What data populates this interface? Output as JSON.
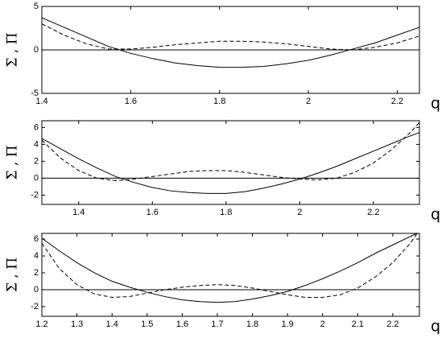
{
  "chart_data": [
    {
      "type": "line",
      "ylabel": "Σ , Π",
      "xlabel": "q",
      "xlim": [
        1.4,
        2.25
      ],
      "ylim": [
        -5,
        5
      ],
      "xticks": [
        1.4,
        1.6,
        1.8,
        2,
        2.2
      ],
      "yticks": [
        -5,
        0,
        5
      ],
      "zero_line": true,
      "x": [
        1.4,
        1.45,
        1.5,
        1.55,
        1.6,
        1.65,
        1.7,
        1.75,
        1.8,
        1.85,
        1.9,
        1.95,
        2.0,
        2.05,
        2.1,
        2.15,
        2.2,
        2.25
      ],
      "series": [
        {
          "color": "#000000",
          "dash": "solid",
          "values": [
            3.7,
            2.6,
            1.5,
            0.4,
            -0.4,
            -1.0,
            -1.5,
            -1.8,
            -2.0,
            -2.0,
            -1.9,
            -1.6,
            -1.2,
            -0.6,
            0.1,
            0.8,
            1.7,
            2.6
          ]
        },
        {
          "color": "#000000",
          "dash": "dashed",
          "values": [
            3.0,
            1.7,
            0.7,
            0.1,
            0.1,
            0.3,
            0.6,
            0.8,
            1.0,
            1.0,
            0.9,
            0.7,
            0.4,
            0.1,
            0.0,
            0.3,
            0.8,
            1.6
          ]
        }
      ]
    },
    {
      "type": "line",
      "ylabel": "Σ , Π",
      "xlabel": "q",
      "xlim": [
        1.3,
        2.325
      ],
      "ylim": [
        -3.1,
        6.8
      ],
      "xticks": [
        1.4,
        1.6,
        1.8,
        2,
        2.2
      ],
      "yticks": [
        -2,
        0,
        2,
        4,
        6
      ],
      "zero_line": true,
      "x": [
        1.3,
        1.35,
        1.4,
        1.45,
        1.5,
        1.55,
        1.6,
        1.65,
        1.7,
        1.75,
        1.8,
        1.85,
        1.9,
        1.95,
        2.0,
        2.05,
        2.1,
        2.15,
        2.2,
        2.25,
        2.3,
        2.325
      ],
      "series": [
        {
          "color": "#000000",
          "dash": "solid",
          "values": [
            4.7,
            3.5,
            2.3,
            1.2,
            0.2,
            -0.5,
            -1.1,
            -1.5,
            -1.7,
            -1.8,
            -1.8,
            -1.6,
            -1.2,
            -0.7,
            -0.1,
            0.6,
            1.4,
            2.3,
            3.2,
            4.1,
            5.0,
            5.4
          ]
        },
        {
          "color": "#000000",
          "dash": "dashed",
          "values": [
            4.5,
            2.4,
            0.9,
            0.0,
            -0.3,
            -0.1,
            0.2,
            0.5,
            0.8,
            0.9,
            0.9,
            0.7,
            0.4,
            0.1,
            -0.1,
            -0.2,
            0.0,
            0.7,
            1.8,
            3.4,
            5.4,
            6.6
          ]
        }
      ]
    },
    {
      "type": "line",
      "ylabel": "Σ , Π",
      "xlabel": "q",
      "xlim": [
        1.2,
        2.276
      ],
      "ylim": [
        -3.14,
        6.67
      ],
      "xticks": [
        1.2,
        1.3,
        1.4,
        1.5,
        1.6,
        1.7,
        1.8,
        1.9,
        2,
        2.1,
        2.2
      ],
      "yticks": [
        -2,
        0,
        2,
        4,
        6
      ],
      "zero_line": true,
      "x": [
        1.2,
        1.25,
        1.3,
        1.35,
        1.4,
        1.45,
        1.5,
        1.55,
        1.6,
        1.65,
        1.7,
        1.75,
        1.8,
        1.85,
        1.9,
        1.95,
        2.0,
        2.05,
        2.1,
        2.15,
        2.2,
        2.25,
        2.27
      ],
      "series": [
        {
          "color": "#000000",
          "dash": "solid",
          "values": [
            6.1,
            4.6,
            3.2,
            2.0,
            1.0,
            0.3,
            -0.3,
            -0.8,
            -1.2,
            -1.4,
            -1.5,
            -1.4,
            -1.1,
            -0.7,
            -0.2,
            0.5,
            1.3,
            2.2,
            3.2,
            4.3,
            5.3,
            6.3,
            6.7
          ]
        },
        {
          "color": "#000000",
          "dash": "dashed",
          "values": [
            5.5,
            2.5,
            0.6,
            -0.5,
            -0.9,
            -0.8,
            -0.4,
            0.0,
            0.3,
            0.5,
            0.6,
            0.5,
            0.2,
            -0.2,
            -0.6,
            -0.9,
            -0.9,
            -0.6,
            0.2,
            1.5,
            3.2,
            5.5,
            6.7
          ]
        }
      ]
    }
  ]
}
